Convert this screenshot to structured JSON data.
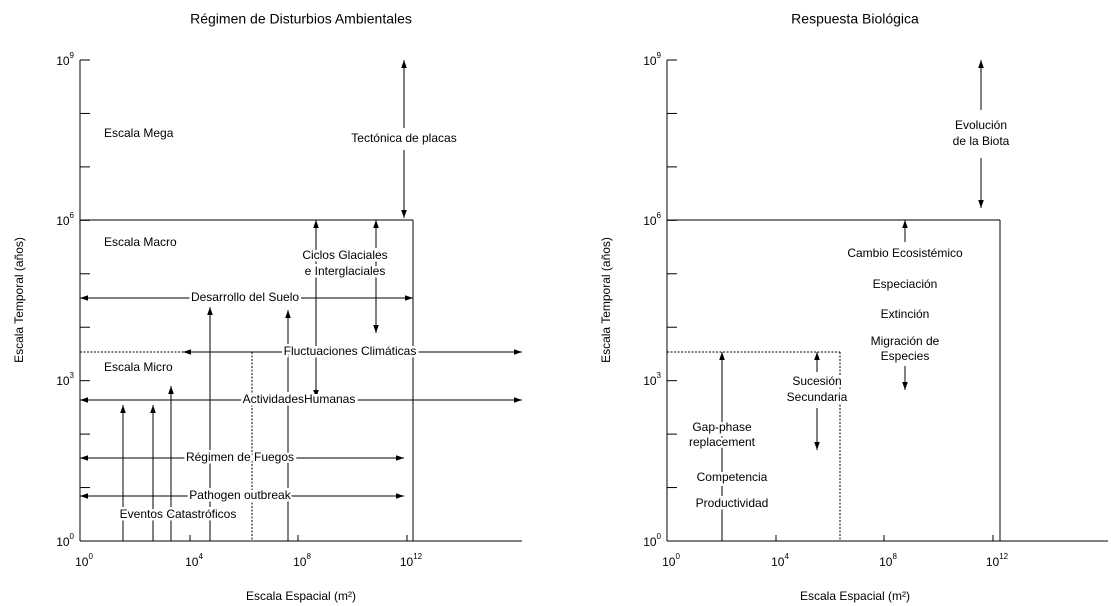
{
  "panels": [
    {
      "title": "Régimen de Disturbios Ambientales",
      "x_axis_label": "Escala Espacial (m²)",
      "y_axis_label": "Escala Temporal (años)",
      "x_ticks": [
        {
          "base": "10",
          "exp": "0"
        },
        {
          "base": "10",
          "exp": "4"
        },
        {
          "base": "10",
          "exp": "8"
        },
        {
          "base": "10",
          "exp": "12"
        }
      ],
      "y_ticks": [
        {
          "base": "10",
          "exp": "0"
        },
        {
          "base": "10",
          "exp": "3"
        },
        {
          "base": "10",
          "exp": "6"
        },
        {
          "base": "10",
          "exp": "9"
        }
      ],
      "labels": [
        "Escala Mega",
        "Escala Macro",
        "Escala Micro",
        "Tectónica de placas",
        "Ciclos Glaciales",
        "e Interglaciales",
        "Desarrollo del Suelo",
        "Fluctuaciones Climáticas",
        "ActividadesHumanas",
        "Régimen de Fuegos",
        "Pathogen outbreak",
        "Eventos Catastróficos"
      ]
    },
    {
      "title": "Respuesta Biológica",
      "x_axis_label": "Escala Espacial (m²)",
      "y_axis_label": "Escala Temporal (años)",
      "x_ticks": [
        {
          "base": "10",
          "exp": "0"
        },
        {
          "base": "10",
          "exp": "4"
        },
        {
          "base": "10",
          "exp": "8"
        },
        {
          "base": "10",
          "exp": "12"
        }
      ],
      "y_ticks": [
        {
          "base": "10",
          "exp": "0"
        },
        {
          "base": "10",
          "exp": "3"
        },
        {
          "base": "10",
          "exp": "6"
        },
        {
          "base": "10",
          "exp": "9"
        }
      ],
      "labels": [
        "Evolución",
        "de la Biota",
        "Cambio Ecosistémico",
        "Especiación",
        "Extinción",
        "Migración de",
        "Especies",
        "Sucesión",
        "Secundaria",
        "Gap-phase",
        "replacement",
        "Competencia",
        "Productividad"
      ]
    }
  ]
}
